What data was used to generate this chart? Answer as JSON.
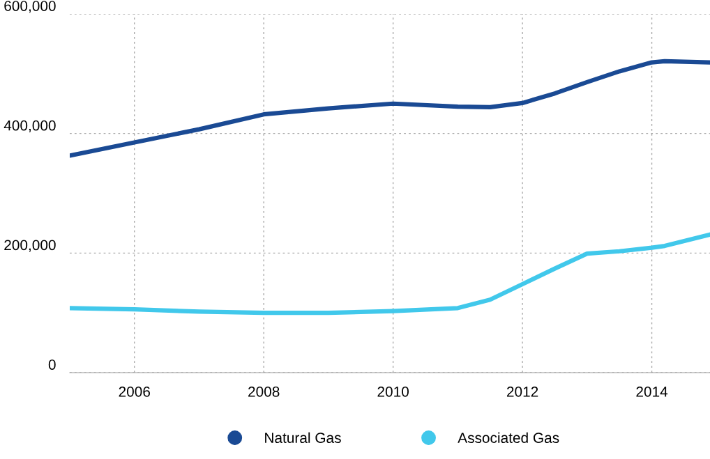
{
  "chart_data": {
    "type": "line",
    "x": [
      2005,
      2006,
      2007,
      2008,
      2009,
      2010,
      2011,
      2011.5,
      2012,
      2012.5,
      2013,
      2013.5,
      2014,
      2014.2,
      2014.9
    ],
    "series": [
      {
        "name": "Natural Gas",
        "color": "#1a4a94",
        "values": [
          363000,
          385000,
          407000,
          432000,
          442000,
          450000,
          445000,
          444000,
          451000,
          467000,
          486000,
          504000,
          519000,
          521000,
          519000
        ]
      },
      {
        "name": "Associated Gas",
        "color": "#41c8eb",
        "values": [
          108000,
          106000,
          102000,
          100000,
          100000,
          103000,
          108000,
          122000,
          148000,
          174000,
          199000,
          203000,
          209000,
          212000,
          231000
        ]
      }
    ],
    "xlim": [
      2005,
      2014.9
    ],
    "xticks": [
      2006,
      2008,
      2010,
      2012,
      2014
    ],
    "ylim": [
      0,
      600000
    ],
    "yticks": [
      {
        "value": 0,
        "label": "0"
      },
      {
        "value": 200000,
        "label": "200,000"
      },
      {
        "value": 400000,
        "label": "400,000"
      },
      {
        "value": 600000,
        "label": "600,000"
      }
    ],
    "grid": true,
    "legend": "bottom",
    "line_style": "solid",
    "marker": "none"
  }
}
